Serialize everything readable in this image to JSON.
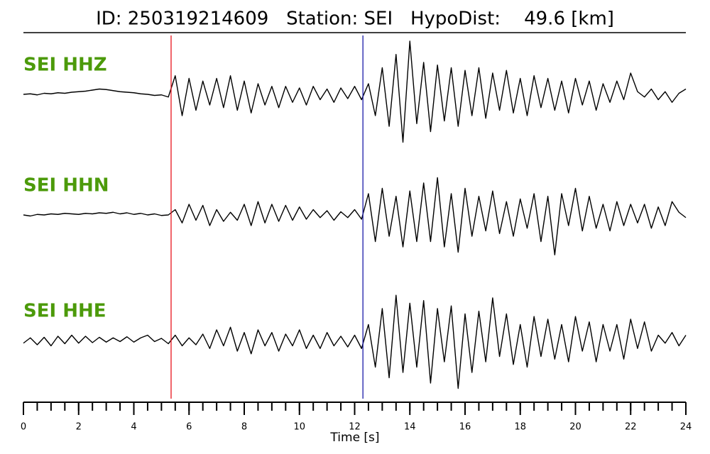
{
  "chart_data": {
    "type": "seismogram",
    "title": "ID: 250319214609   Station: SEI   HypoDist:    49.6 [km]",
    "x_label": "Time [s]",
    "xlim": [
      0,
      24
    ],
    "ylim": [
      -1,
      1
    ],
    "xticks": [
      0,
      2,
      4,
      6,
      8,
      10,
      12,
      14,
      16,
      18,
      20,
      22,
      24
    ],
    "xminorticks": [
      0,
      0.5,
      1,
      1.5,
      2,
      2.5,
      3,
      3.5,
      4,
      4.5,
      5,
      5.5,
      6,
      6.5,
      7,
      7.5,
      8,
      8.5,
      9,
      9.5,
      10,
      10.5,
      11,
      11.5,
      12,
      12.5,
      13,
      13.5,
      14,
      14.5,
      15,
      15.5,
      16,
      16.5,
      17,
      17.5,
      18,
      18.5,
      19,
      19.5,
      20,
      20.5,
      21,
      21.5,
      22,
      22.5,
      23,
      23.5,
      24
    ],
    "vlines": [
      {
        "x": 5.35,
        "color": "#e8141c"
      },
      {
        "x": 12.3,
        "color": "#1a1aa8"
      }
    ],
    "label_color": "#4c9a0a",
    "x": [
      0,
      0.25,
      0.5,
      0.75,
      1,
      1.25,
      1.5,
      1.75,
      2,
      2.25,
      2.5,
      2.75,
      3,
      3.25,
      3.5,
      3.75,
      4,
      4.25,
      4.5,
      4.75,
      5,
      5.25,
      5.5,
      5.75,
      6,
      6.25,
      6.5,
      6.75,
      7,
      7.25,
      7.5,
      7.75,
      8,
      8.25,
      8.5,
      8.75,
      9,
      9.25,
      9.5,
      9.75,
      10,
      10.25,
      10.5,
      10.75,
      11,
      11.25,
      11.5,
      11.75,
      12,
      12.25,
      12.5,
      12.75,
      13,
      13.25,
      13.5,
      13.75,
      14,
      14.25,
      14.5,
      14.75,
      15,
      15.25,
      15.5,
      15.75,
      16,
      16.25,
      16.5,
      16.75,
      17,
      17.25,
      17.5,
      17.75,
      18,
      18.25,
      18.5,
      18.75,
      19,
      19.25,
      19.5,
      19.75,
      20,
      20.25,
      20.5,
      20.75,
      21,
      21.25,
      21.5,
      21.75,
      22,
      22.25,
      22.5,
      22.75,
      23,
      23.25,
      23.5,
      23.75,
      24
    ],
    "series": [
      {
        "name": "SEI HHZ",
        "color": "#000000",
        "values": [
          0,
          0.01,
          -0.01,
          0.02,
          0.01,
          0.03,
          0.02,
          0.04,
          0.05,
          0.06,
          0.08,
          0.1,
          0.09,
          0.07,
          0.05,
          0.04,
          0.03,
          0.01,
          0.0,
          -0.02,
          -0.01,
          -0.05,
          0.35,
          -0.4,
          0.3,
          -0.3,
          0.25,
          -0.2,
          0.3,
          -0.25,
          0.35,
          -0.3,
          0.25,
          -0.35,
          0.2,
          -0.2,
          0.15,
          -0.25,
          0.15,
          -0.15,
          0.12,
          -0.2,
          0.15,
          -0.1,
          0.1,
          -0.15,
          0.12,
          -0.08,
          0.15,
          -0.1,
          0.2,
          -0.4,
          0.5,
          -0.6,
          0.75,
          -0.9,
          1.0,
          -0.55,
          0.6,
          -0.7,
          0.55,
          -0.5,
          0.5,
          -0.6,
          0.45,
          -0.4,
          0.5,
          -0.45,
          0.4,
          -0.3,
          0.45,
          -0.35,
          0.3,
          -0.4,
          0.35,
          -0.25,
          0.3,
          -0.3,
          0.25,
          -0.35,
          0.3,
          -0.2,
          0.25,
          -0.3,
          0.2,
          -0.15,
          0.25,
          -0.1,
          0.4,
          0.05,
          -0.05,
          0.1,
          -0.1,
          0.05,
          -0.15,
          0.02,
          0.1
        ]
      },
      {
        "name": "SEI HHN",
        "color": "#000000",
        "values": [
          0,
          -0.02,
          0.01,
          0,
          0.02,
          0.01,
          0.03,
          0.02,
          0.01,
          0.03,
          0.02,
          0.04,
          0.03,
          0.05,
          0.02,
          0.04,
          0.01,
          0.03,
          0.0,
          0.02,
          -0.01,
          0.0,
          0.1,
          -0.15,
          0.2,
          -0.1,
          0.18,
          -0.2,
          0.1,
          -0.12,
          0.05,
          -0.1,
          0.2,
          -0.2,
          0.25,
          -0.15,
          0.2,
          -0.12,
          0.18,
          -0.1,
          0.15,
          -0.08,
          0.1,
          -0.05,
          0.08,
          -0.1,
          0.06,
          -0.05,
          0.1,
          -0.08,
          0.4,
          -0.5,
          0.5,
          -0.4,
          0.35,
          -0.6,
          0.45,
          -0.5,
          0.6,
          -0.5,
          0.7,
          -0.6,
          0.4,
          -0.7,
          0.5,
          -0.4,
          0.35,
          -0.3,
          0.45,
          -0.35,
          0.25,
          -0.4,
          0.3,
          -0.25,
          0.4,
          -0.5,
          0.35,
          -0.75,
          0.4,
          -0.2,
          0.5,
          -0.3,
          0.35,
          -0.25,
          0.2,
          -0.3,
          0.25,
          -0.2,
          0.2,
          -0.15,
          0.2,
          -0.25,
          0.15,
          -0.2,
          0.25,
          0.05,
          -0.05
        ]
      },
      {
        "name": "SEI HHE",
        "color": "#000000",
        "values": [
          -0.05,
          0.05,
          -0.08,
          0.06,
          -0.1,
          0.08,
          -0.06,
          0.1,
          -0.05,
          0.08,
          -0.04,
          0.06,
          -0.03,
          0.05,
          -0.02,
          0.07,
          -0.03,
          0.05,
          0.1,
          -0.02,
          0.04,
          -0.06,
          0.1,
          -0.1,
          0.05,
          -0.08,
          0.12,
          -0.15,
          0.2,
          -0.1,
          0.25,
          -0.2,
          0.15,
          -0.25,
          0.2,
          -0.1,
          0.15,
          -0.2,
          0.12,
          -0.1,
          0.2,
          -0.15,
          0.1,
          -0.15,
          0.15,
          -0.1,
          0.08,
          -0.12,
          0.1,
          -0.15,
          0.3,
          -0.5,
          0.6,
          -0.7,
          0.85,
          -0.6,
          0.7,
          -0.5,
          0.75,
          -0.8,
          0.6,
          -0.4,
          0.65,
          -0.9,
          0.5,
          -0.6,
          0.55,
          -0.4,
          0.8,
          -0.3,
          0.5,
          -0.45,
          0.3,
          -0.5,
          0.45,
          -0.3,
          0.4,
          -0.35,
          0.3,
          -0.4,
          0.45,
          -0.2,
          0.35,
          -0.4,
          0.3,
          -0.2,
          0.3,
          -0.35,
          0.4,
          -0.15,
          0.35,
          -0.2,
          0.1,
          -0.05,
          0.15,
          -0.1,
          0.1
        ]
      }
    ]
  }
}
